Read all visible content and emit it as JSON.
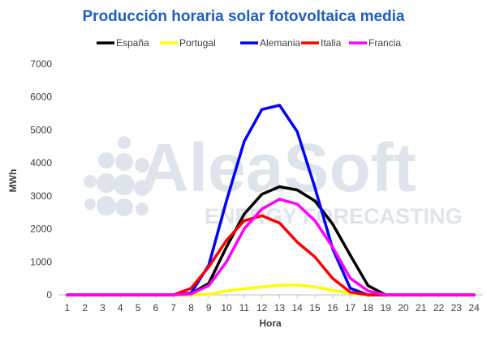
{
  "watermark": {
    "brand": "AleaSoft",
    "tagline": "ENERGY FORECASTING",
    "color": "#dfe4ec"
  },
  "chart_data": {
    "type": "line",
    "title": "Producción horaria solar fotovoltaica media",
    "title_color": "#1f5fbf",
    "xlabel": "Hora",
    "ylabel": "MWh",
    "x": [
      1,
      2,
      3,
      4,
      5,
      6,
      7,
      8,
      9,
      10,
      11,
      12,
      13,
      14,
      15,
      16,
      17,
      18,
      19,
      20,
      21,
      22,
      23,
      24
    ],
    "ylim": [
      0,
      7000
    ],
    "yticks": [
      0,
      1000,
      2000,
      3000,
      4000,
      5000,
      6000,
      7000
    ],
    "grid": false,
    "legend_position": "top",
    "series": [
      {
        "name": "España",
        "color": "#000000",
        "values": [
          0,
          0,
          0,
          0,
          0,
          0,
          0,
          40,
          350,
          1450,
          2450,
          3050,
          3280,
          3180,
          2850,
          2150,
          1200,
          280,
          0,
          0,
          0,
          0,
          0,
          0
        ]
      },
      {
        "name": "Portugal",
        "color": "#ffff00",
        "values": [
          0,
          0,
          0,
          0,
          0,
          0,
          0,
          0,
          20,
          120,
          185,
          240,
          290,
          300,
          240,
          140,
          50,
          0,
          0,
          0,
          0,
          0,
          0,
          0
        ]
      },
      {
        "name": "Alemania",
        "color": "#0000ff",
        "values": [
          0,
          0,
          0,
          0,
          0,
          0,
          0,
          60,
          900,
          2850,
          4650,
          5620,
          5750,
          4950,
          3250,
          1400,
          200,
          0,
          0,
          0,
          0,
          0,
          0,
          0
        ]
      },
      {
        "name": "Italia",
        "color": "#ff0000",
        "values": [
          0,
          0,
          0,
          0,
          0,
          0,
          0,
          200,
          850,
          1650,
          2250,
          2400,
          2180,
          1600,
          1150,
          500,
          80,
          0,
          0,
          0,
          0,
          0,
          0,
          0
        ]
      },
      {
        "name": "Francia",
        "color": "#ff00ff",
        "values": [
          0,
          0,
          0,
          0,
          0,
          0,
          0,
          30,
          280,
          1000,
          2000,
          2600,
          2900,
          2750,
          2250,
          1450,
          500,
          120,
          0,
          0,
          0,
          0,
          0,
          0
        ]
      }
    ]
  }
}
